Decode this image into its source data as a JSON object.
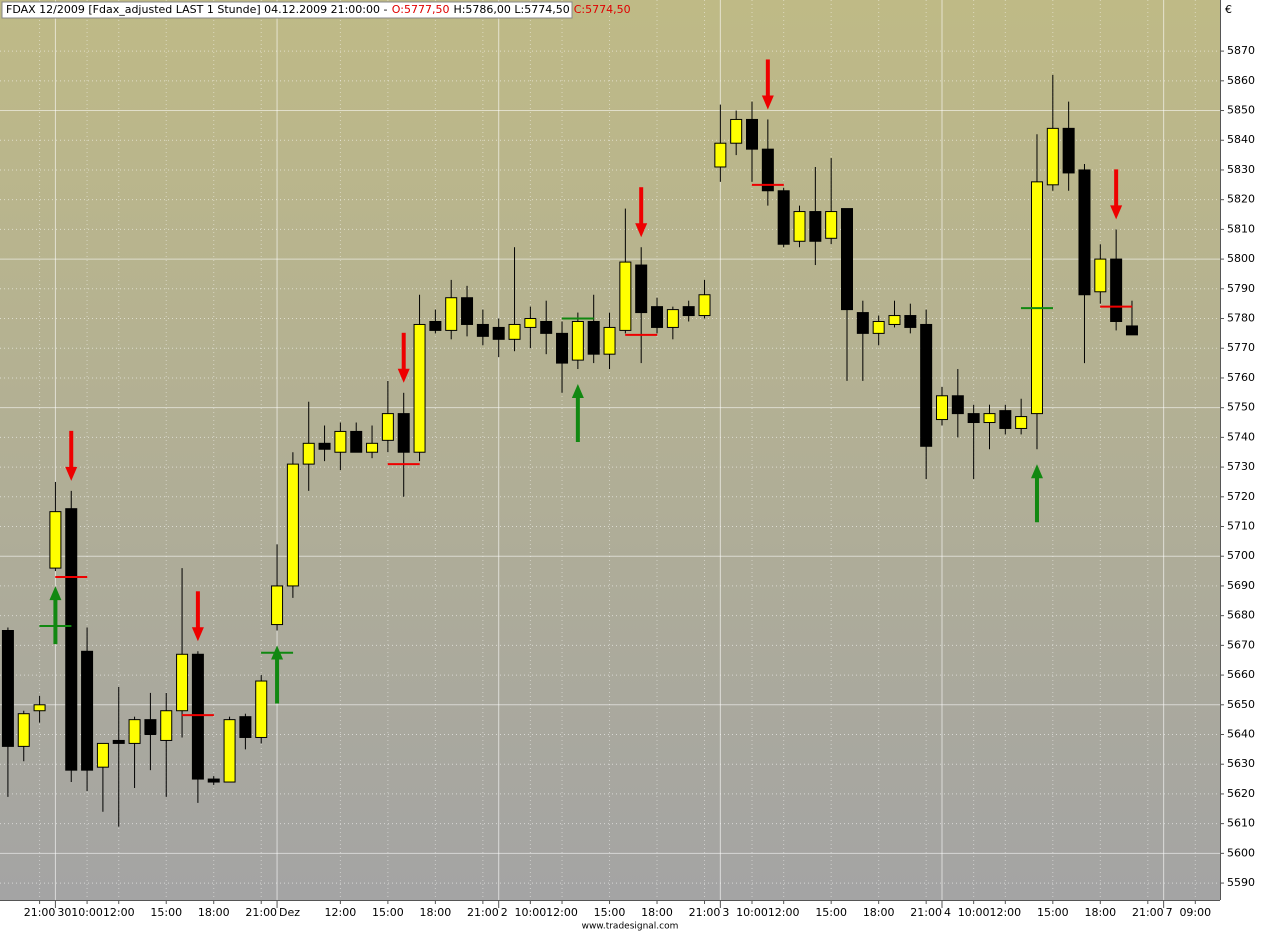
{
  "chart_data": {
    "type": "candlestick",
    "title_parts": [
      {
        "text": "FDAX 12/2009 [Fdax_adjusted LAST 1 Stunde] 04.12.2009 21:00:00 -",
        "color": "#000000"
      },
      {
        "text": "O:5777,50",
        "color": "#e00000"
      },
      {
        "text": "H:5786,00 L:5774,50",
        "color": "#000000"
      },
      {
        "text": "C:5774,50",
        "color": "#e00000"
      }
    ],
    "y_unit": "€",
    "source": "www.tradesignal.com",
    "up_color": "#ffff00",
    "down_color": "#000000",
    "open": [
      5675,
      5636,
      5648,
      5696,
      5716,
      5668,
      5629,
      5638,
      5637,
      5645,
      5638,
      5648,
      5667,
      5625,
      5624,
      5646,
      5639,
      5677,
      5690,
      5731,
      5738,
      5735,
      5742,
      5735,
      5739,
      5748,
      5735,
      5779,
      5776,
      5787,
      5778,
      5777,
      5773,
      5777,
      5779,
      5775,
      5766,
      5779,
      5768,
      5776,
      5798,
      5784,
      5777,
      5784,
      5781,
      5831,
      5839,
      5847,
      5837,
      5823,
      5806,
      5816,
      5807,
      5817,
      5782,
      5775,
      5778,
      5781,
      5778,
      5746,
      5754,
      5748,
      5745,
      5749,
      5743,
      5748,
      5825,
      5844,
      5830,
      5789,
      5800,
      5777.5
    ],
    "high": [
      5676,
      5648,
      5653,
      5725,
      5722,
      5676,
      5637,
      5656,
      5646,
      5654,
      5654,
      5696,
      5668,
      5626,
      5646,
      5647,
      5660,
      5704,
      5735,
      5752,
      5744,
      5745,
      5745,
      5744,
      5759,
      5755,
      5788,
      5783,
      5793,
      5791,
      5783,
      5780,
      5804,
      5784,
      5786,
      5779,
      5782,
      5788,
      5782,
      5817,
      5804,
      5787,
      5784,
      5786,
      5793,
      5852,
      5850,
      5853,
      5847,
      5824,
      5818,
      5831,
      5834,
      5817,
      5786,
      5781,
      5786,
      5785,
      5783,
      5757,
      5763,
      5751,
      5751,
      5751,
      5753,
      5842,
      5862,
      5853,
      5832,
      5805,
      5810,
      5786
    ],
    "low": [
      5619,
      5631,
      5644,
      5695,
      5624,
      5621,
      5614,
      5609,
      5622,
      5628,
      5619,
      5639,
      5617,
      5623,
      5624,
      5635,
      5637,
      5675,
      5686,
      5722,
      5732,
      5729,
      5735,
      5733,
      5735,
      5720,
      5732,
      5775,
      5773,
      5774,
      5771,
      5767,
      5769,
      5770,
      5768,
      5755,
      5763,
      5765,
      5763,
      5775,
      5765,
      5775,
      5773,
      5779,
      5780,
      5826,
      5835,
      5826,
      5818,
      5804,
      5804,
      5798,
      5805,
      5759,
      5759,
      5771,
      5777,
      5775,
      5726,
      5744,
      5740,
      5726,
      5736,
      5741,
      5741,
      5736,
      5823,
      5823,
      5765,
      5785,
      5776,
      5774.5
    ],
    "close": [
      5636,
      5647,
      5650,
      5715,
      5628,
      5628,
      5637,
      5637,
      5645,
      5640,
      5648,
      5667,
      5625,
      5624,
      5645,
      5639,
      5658,
      5690,
      5731,
      5738,
      5736,
      5742,
      5735,
      5738,
      5748,
      5735,
      5778,
      5776,
      5787,
      5778,
      5774,
      5773,
      5778,
      5780,
      5775,
      5765,
      5779,
      5768,
      5777,
      5799,
      5782,
      5777,
      5783,
      5781,
      5788,
      5839,
      5847,
      5837,
      5823,
      5805,
      5816,
      5806,
      5816,
      5783,
      5775,
      5779,
      5781,
      5777,
      5737,
      5754,
      5748,
      5745,
      5748,
      5743,
      5747,
      5826,
      5844,
      5829,
      5788,
      5800,
      5779,
      5774.5
    ],
    "sell_signals": {
      "color": "#ee0000",
      "index": [
        4,
        12,
        25,
        40,
        48,
        70
      ],
      "level": [
        5693,
        5646.5,
        5731,
        5774.5,
        5825,
        5784
      ]
    },
    "buy_signals": {
      "color": "#118811",
      "index": [
        3,
        17,
        36,
        65
      ],
      "level": [
        5676.5,
        5667.5,
        5780,
        5783.5
      ]
    },
    "xlim": [
      -0.5,
      76.56
    ],
    "ylim": [
      5584.3,
      5887.2
    ],
    "yticks": [
      5590,
      5600,
      5610,
      5620,
      5630,
      5640,
      5650,
      5660,
      5670,
      5680,
      5690,
      5700,
      5710,
      5720,
      5730,
      5740,
      5750,
      5760,
      5770,
      5780,
      5790,
      5800,
      5810,
      5820,
      5830,
      5840,
      5850,
      5860,
      5870
    ],
    "xticks": [
      {
        "value": 2,
        "label": "21:00"
      },
      {
        "value": 5,
        "label": "10:00"
      },
      {
        "value": 7,
        "label": "12:00"
      },
      {
        "value": 10,
        "label": "15:00"
      },
      {
        "value": 13,
        "label": "18:00"
      },
      {
        "value": 16,
        "label": "21:00"
      },
      {
        "value": 21,
        "label": "12:00"
      },
      {
        "value": 24,
        "label": "15:00"
      },
      {
        "value": 27,
        "label": "18:00"
      },
      {
        "value": 30,
        "label": "21:00"
      },
      {
        "value": 33,
        "label": "10:00"
      },
      {
        "value": 35,
        "label": "12:00"
      },
      {
        "value": 38,
        "label": "15:00"
      },
      {
        "value": 41,
        "label": "18:00"
      },
      {
        "value": 44,
        "label": "21:00"
      },
      {
        "value": 47,
        "label": "10:00"
      },
      {
        "value": 49,
        "label": "12:00"
      },
      {
        "value": 52,
        "label": "15:00"
      },
      {
        "value": 55,
        "label": "18:00"
      },
      {
        "value": 58,
        "label": "21:00"
      },
      {
        "value": 61,
        "label": "10:00"
      },
      {
        "value": 63,
        "label": "12:00"
      },
      {
        "value": 66,
        "label": "15:00"
      },
      {
        "value": 69,
        "label": "18:00"
      },
      {
        "value": 72,
        "label": "21:00"
      },
      {
        "value": 75,
        "label": "09:00"
      }
    ],
    "day_ticks": [
      {
        "value": 3,
        "label": "30"
      },
      {
        "value": 17,
        "label": "Dez"
      },
      {
        "value": 31,
        "label": "2"
      },
      {
        "value": 45,
        "label": "3"
      },
      {
        "value": 59,
        "label": "4"
      },
      {
        "value": 73,
        "label": "7"
      }
    ],
    "grid": true
  }
}
